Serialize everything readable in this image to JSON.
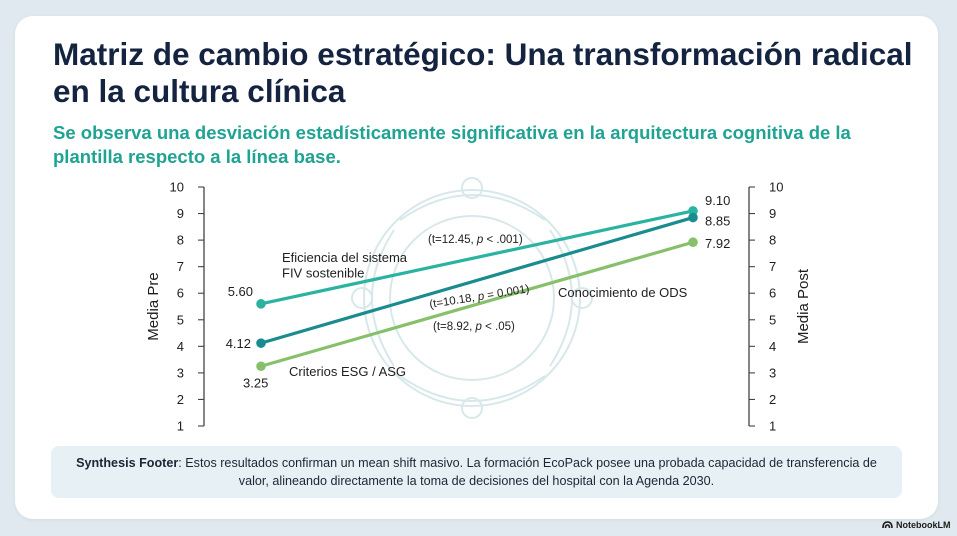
{
  "slide": {
    "title": "Matriz de cambio estratégico: Una transformación radical en la cultura clínica",
    "subtitle": "Se observa una desviación estadísticamente significativa en la arquitectura cognitiva de la plantilla respecto a la línea base.",
    "footer_label": "Synthesis Footer",
    "footer_text": ": Estos resultados confirman un mean shift masivo. La formación EcoPack posee una probada capacidad de transferencia de valor, alineando directamente la toma de decisiones del hospital con la Agenda 2030.",
    "brand": "NotebookLM"
  },
  "chart_data": {
    "type": "line",
    "ylim": [
      1,
      10
    ],
    "ticks": [
      "1",
      "2",
      "3",
      "4",
      "5",
      "6",
      "7",
      "8",
      "9",
      "10"
    ],
    "left_axis_label": "Media Pre",
    "right_axis_label": "Media Post",
    "x": [
      "Pre",
      "Post"
    ],
    "series": [
      {
        "name_lines": [
          "Eficiencia del sistema",
          "FIV sostenible"
        ],
        "pre": 5.6,
        "post": 9.1,
        "pre_label": "5.60",
        "post_label": "9.10",
        "stat_prefix": "(t=12.45, ",
        "stat_p": "p",
        "stat_suffix": " < .001)",
        "color": "#2ab3a0"
      },
      {
        "name_lines": [
          "Conocimiento de ODS"
        ],
        "pre": 4.12,
        "post": 8.85,
        "pre_label": "4.12",
        "post_label": "8.85",
        "stat_prefix": "(t=10.18, ",
        "stat_p": "p",
        "stat_suffix": " = 0.001)",
        "color": "#1a8c8f"
      },
      {
        "name_lines": [
          "Criterios ESG / ASG"
        ],
        "pre": 3.25,
        "post": 7.92,
        "pre_label": "3.25",
        "post_label": "7.92",
        "stat_prefix": "(t=8.92, ",
        "stat_p": "p",
        "stat_suffix": " < .05)",
        "color": "#86c06a"
      }
    ]
  }
}
